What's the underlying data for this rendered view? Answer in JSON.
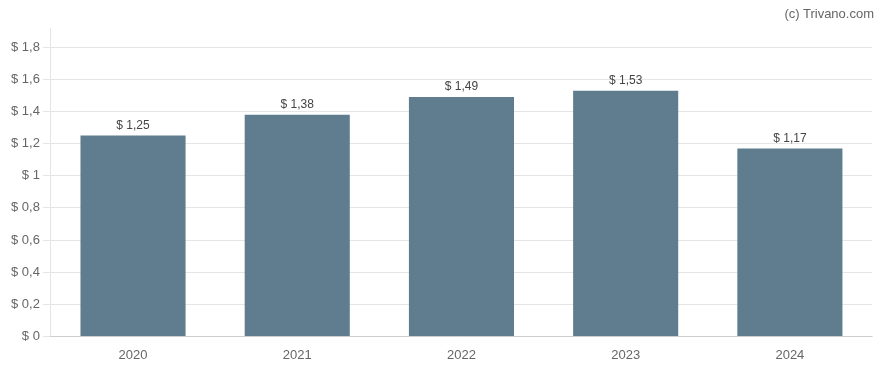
{
  "chart_data": {
    "type": "bar",
    "categories": [
      "2020",
      "2021",
      "2022",
      "2023",
      "2024"
    ],
    "values": [
      1.25,
      1.38,
      1.49,
      1.53,
      1.17
    ],
    "value_labels": [
      "$ 1,25",
      "$ 1,38",
      "$ 1,49",
      "$ 1,53",
      "$ 1,17"
    ],
    "data_labels": true,
    "color": "#5f7d8e",
    "ylim": [
      0,
      1.92
    ],
    "yticks": [
      {
        "value": 0,
        "label": "$ 0"
      },
      {
        "value": 0.2,
        "label": "$ 0,2"
      },
      {
        "value": 0.4,
        "label": "$ 0,4"
      },
      {
        "value": 0.6,
        "label": "$ 0,6"
      },
      {
        "value": 0.8,
        "label": "$ 0,8"
      },
      {
        "value": 1.0,
        "label": "$ 1"
      },
      {
        "value": 1.2,
        "label": "$ 1,2"
      },
      {
        "value": 1.4,
        "label": "$ 1,4"
      },
      {
        "value": 1.6,
        "label": "$ 1,6"
      },
      {
        "value": 1.8,
        "label": "$ 1,8"
      }
    ],
    "grid": true,
    "annotations": [
      "(c) Trivano.com"
    ]
  }
}
